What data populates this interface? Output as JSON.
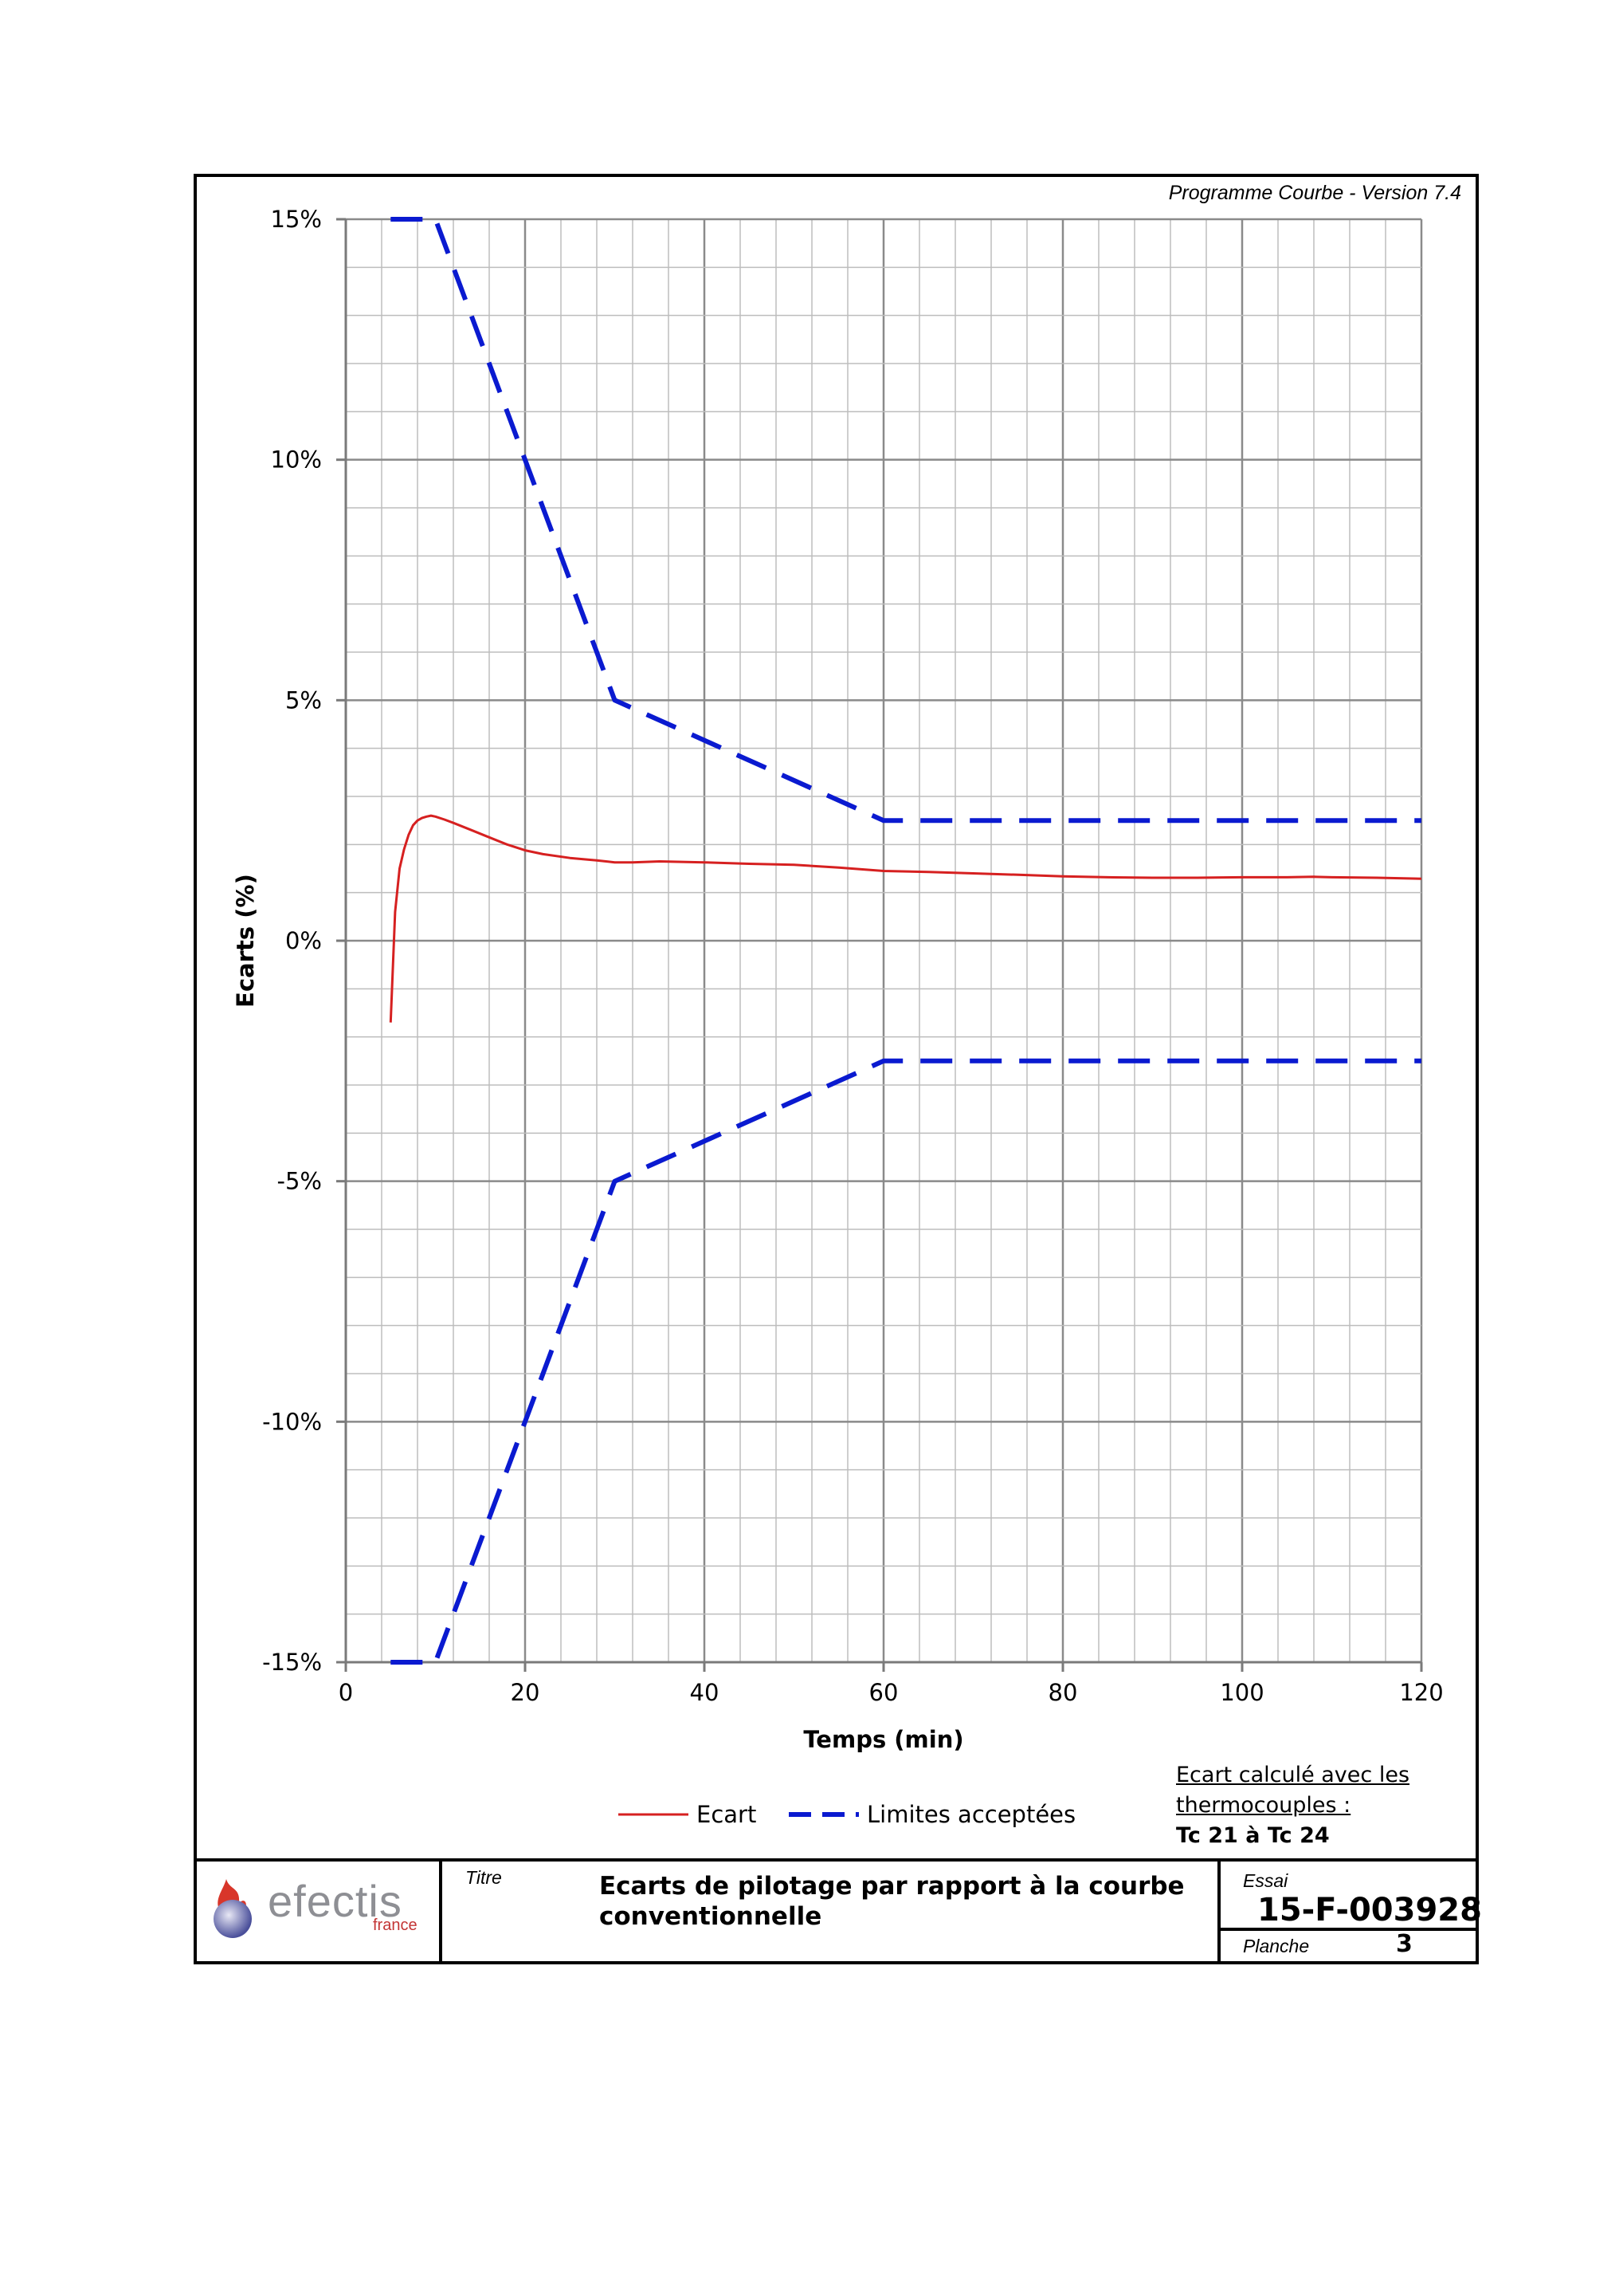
{
  "header": {
    "version": "Programme Courbe  - Version 7.4"
  },
  "chart_data": {
    "type": "line",
    "xlabel": "Temps (min)",
    "ylabel": "Ecarts (%)",
    "xlim": [
      0,
      120
    ],
    "ylim": [
      -15,
      15
    ],
    "xticks": [
      0,
      20,
      40,
      60,
      80,
      100,
      120
    ],
    "yticks": [
      15,
      10,
      5,
      0,
      -5,
      -10,
      -15
    ],
    "ytick_labels": [
      "15%",
      "10%",
      "5%",
      "0%",
      "-5%",
      "-10%",
      "-15%"
    ],
    "grid": true,
    "legend_position": "bottom",
    "series": [
      {
        "name": "Ecart",
        "color": "#d62020",
        "style": "solid",
        "x": [
          5,
          5.5,
          6,
          6.5,
          7,
          7.5,
          8,
          8.5,
          9,
          9.5,
          10,
          11,
          12,
          14,
          16,
          18,
          20,
          22,
          25,
          28,
          30,
          32,
          35,
          40,
          45,
          50,
          55,
          60,
          65,
          70,
          75,
          80,
          85,
          90,
          95,
          100,
          105,
          108,
          110,
          115,
          120
        ],
        "y": [
          -1.7,
          0.6,
          1.5,
          1.9,
          2.2,
          2.4,
          2.5,
          2.55,
          2.58,
          2.6,
          2.58,
          2.52,
          2.45,
          2.3,
          2.15,
          2.0,
          1.88,
          1.8,
          1.72,
          1.67,
          1.63,
          1.63,
          1.65,
          1.63,
          1.6,
          1.58,
          1.52,
          1.45,
          1.43,
          1.4,
          1.37,
          1.34,
          1.32,
          1.31,
          1.31,
          1.32,
          1.32,
          1.33,
          1.32,
          1.31,
          1.29
        ]
      },
      {
        "name": "Limites acceptées",
        "color": "#0a1ad0",
        "style": "dashed",
        "x": [
          5,
          10,
          30,
          60,
          120
        ],
        "y": [
          15,
          15,
          5,
          2.5,
          2.5
        ]
      },
      {
        "name": "Limites acceptées",
        "color": "#0a1ad0",
        "style": "dashed",
        "x": [
          5,
          10,
          30,
          60,
          120
        ],
        "y": [
          -15,
          -15,
          -5,
          -2.5,
          -2.5
        ]
      }
    ],
    "legend": [
      {
        "label": "Ecart",
        "color": "#d62020",
        "style": "solid"
      },
      {
        "label": "Limites acceptées",
        "color": "#0a1ad0",
        "style": "dashed"
      }
    ]
  },
  "note": {
    "line1": "Ecart calculé avec les",
    "line2": "thermocouples :",
    "line3": "Tc 21 à Tc 24"
  },
  "titleblock": {
    "logo_word": "efectis",
    "logo_sub": "france",
    "titre_label": "Titre",
    "title": "Ecarts de pilotage par rapport à la courbe conventionnelle",
    "essai_label": "Essai",
    "essai_value": "15-F-003928",
    "planche_label": "Planche",
    "planche_value": "3"
  }
}
